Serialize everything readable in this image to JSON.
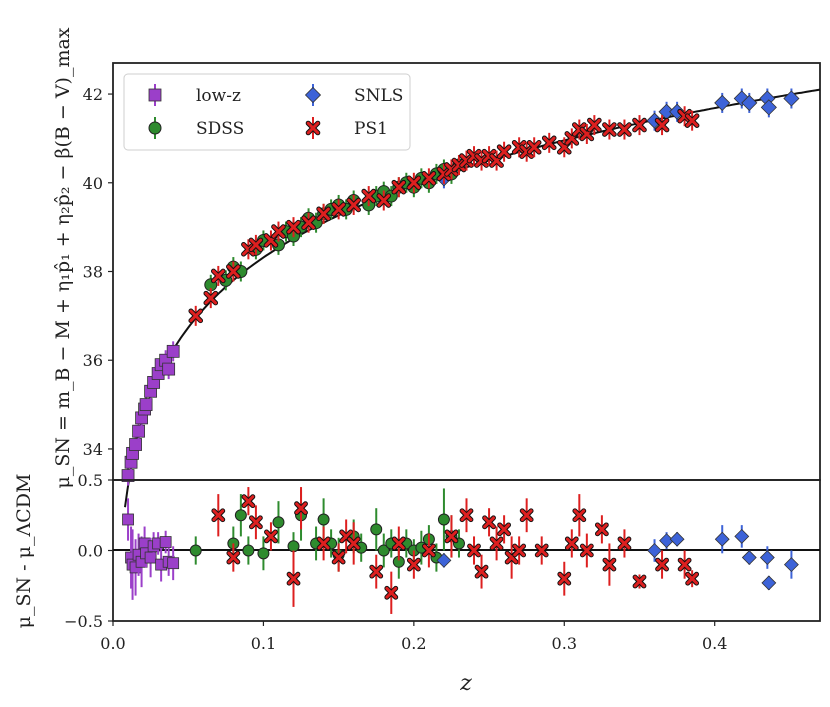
{
  "chart_data": {
    "type": "scatter",
    "xlabel": "z",
    "top_panel": {
      "ylabel": "μ_SN = m_B − M + η₁p̂₁ + η₂p̂₂ − β(B − V)_max",
      "ylim": [
        33.3,
        42.7
      ],
      "yticks": [
        "34",
        "36",
        "38",
        "40",
        "42"
      ],
      "ytick_values": [
        34,
        36,
        38,
        40,
        42
      ],
      "model_curve": "ΛCDM distance modulus",
      "series": [
        {
          "name": "low-z",
          "color": "#9b3fc9",
          "marker": "square",
          "x": [
            0.01,
            0.012,
            0.013,
            0.015,
            0.017,
            0.019,
            0.021,
            0.022,
            0.025,
            0.027,
            0.03,
            0.032,
            0.035,
            0.037,
            0.04
          ],
          "y": [
            33.4,
            33.7,
            33.9,
            34.1,
            34.4,
            34.7,
            34.9,
            35.0,
            35.3,
            35.5,
            35.7,
            35.9,
            36.0,
            35.8,
            36.2
          ]
        },
        {
          "name": "SDSS",
          "color": "#2e8b2e",
          "marker": "circle",
          "x": [
            0.065,
            0.075,
            0.08,
            0.085,
            0.095,
            0.1,
            0.11,
            0.115,
            0.12,
            0.125,
            0.13,
            0.135,
            0.14,
            0.145,
            0.15,
            0.155,
            0.16,
            0.17,
            0.175,
            0.18,
            0.185,
            0.19,
            0.195,
            0.2,
            0.205,
            0.21,
            0.215,
            0.22,
            0.225,
            0.23
          ],
          "y": [
            37.7,
            37.8,
            38.1,
            38.0,
            38.5,
            38.7,
            38.6,
            38.9,
            38.8,
            39.0,
            39.2,
            39.1,
            39.3,
            39.4,
            39.5,
            39.4,
            39.6,
            39.5,
            39.7,
            39.8,
            39.7,
            39.9,
            40.0,
            39.9,
            40.1,
            40.0,
            40.2,
            40.3,
            40.2,
            40.4
          ]
        },
        {
          "name": "SNLS",
          "color": "#3d63d8",
          "marker": "diamond",
          "x": [
            0.22,
            0.36,
            0.368,
            0.375,
            0.405,
            0.418,
            0.423,
            0.435,
            0.436,
            0.451
          ],
          "y": [
            40.1,
            41.4,
            41.6,
            41.6,
            41.8,
            41.9,
            41.8,
            41.9,
            41.7,
            41.9
          ]
        },
        {
          "name": "PS1",
          "color": "#dd1f1f",
          "marker": "x",
          "x": [
            0.055,
            0.065,
            0.07,
            0.08,
            0.09,
            0.095,
            0.105,
            0.11,
            0.12,
            0.13,
            0.14,
            0.15,
            0.16,
            0.17,
            0.18,
            0.19,
            0.2,
            0.21,
            0.22,
            0.225,
            0.23,
            0.235,
            0.24,
            0.245,
            0.25,
            0.255,
            0.26,
            0.27,
            0.275,
            0.28,
            0.29,
            0.3,
            0.305,
            0.31,
            0.315,
            0.32,
            0.33,
            0.34,
            0.35,
            0.365,
            0.38,
            0.385
          ],
          "y": [
            37.0,
            37.4,
            37.9,
            38.0,
            38.5,
            38.6,
            38.7,
            38.9,
            39.0,
            39.1,
            39.3,
            39.4,
            39.5,
            39.7,
            39.6,
            39.9,
            40.0,
            40.1,
            40.2,
            40.3,
            40.4,
            40.5,
            40.6,
            40.5,
            40.6,
            40.5,
            40.7,
            40.8,
            40.7,
            40.8,
            40.9,
            40.8,
            41.0,
            41.2,
            41.1,
            41.3,
            41.2,
            41.2,
            41.3,
            41.3,
            41.5,
            41.4
          ]
        }
      ]
    },
    "bottom_panel": {
      "ylabel": "μ_SN - μ_ΛCDM",
      "ylim": [
        -0.5,
        0.5
      ],
      "yticks": [
        "−0.5",
        "0.0",
        "0.5"
      ],
      "ytick_values": [
        -0.5,
        0.0,
        0.5
      ],
      "series": [
        {
          "name": "low-z",
          "color": "#9b3fc9",
          "marker": "square",
          "x": [
            0.01,
            0.012,
            0.013,
            0.015,
            0.017,
            0.019,
            0.021,
            0.022,
            0.025,
            0.027,
            0.03,
            0.032,
            0.035,
            0.037,
            0.04
          ],
          "y": [
            0.22,
            -0.05,
            -0.1,
            -0.12,
            -0.03,
            -0.08,
            0.05,
            -0.02,
            -0.05,
            0.03,
            0.05,
            -0.1,
            0.06,
            -0.08,
            -0.09
          ],
          "err": [
            0.15,
            0.22,
            0.25,
            0.2,
            0.15,
            0.18,
            0.12,
            0.1,
            0.14,
            0.1,
            0.08,
            0.12,
            0.08,
            0.1,
            0.12
          ]
        },
        {
          "name": "SDSS",
          "color": "#2e8b2e",
          "marker": "circle",
          "x": [
            0.055,
            0.08,
            0.085,
            0.09,
            0.1,
            0.11,
            0.12,
            0.125,
            0.135,
            0.14,
            0.145,
            0.15,
            0.16,
            0.165,
            0.175,
            0.18,
            0.185,
            0.19,
            0.195,
            0.2,
            0.205,
            0.21,
            0.215,
            0.22,
            0.225,
            0.23
          ],
          "y": [
            0.0,
            0.05,
            0.25,
            0.0,
            -0.02,
            0.2,
            0.03,
            0.25,
            0.05,
            0.22,
            0.05,
            -0.03,
            0.1,
            0.02,
            0.15,
            0.0,
            0.05,
            -0.08,
            0.05,
            0.0,
            0.02,
            0.08,
            -0.05,
            0.22,
            0.1,
            0.05
          ],
          "err": [
            0.1,
            0.12,
            0.15,
            0.1,
            0.12,
            0.15,
            0.1,
            0.18,
            0.12,
            0.15,
            0.1,
            0.12,
            0.12,
            0.1,
            0.15,
            0.12,
            0.1,
            0.12,
            0.1,
            0.08,
            0.12,
            0.1,
            0.1,
            0.22,
            0.15,
            0.1
          ]
        },
        {
          "name": "SNLS",
          "color": "#3d63d8",
          "marker": "diamond",
          "x": [
            0.22,
            0.36,
            0.368,
            0.375,
            0.405,
            0.418,
            0.423,
            0.435,
            0.436,
            0.451
          ],
          "y": [
            -0.07,
            0.0,
            0.07,
            0.08,
            0.08,
            0.1,
            -0.05,
            -0.05,
            -0.23,
            -0.1
          ],
          "err": [
            0.05,
            0.08,
            0.06,
            0.05,
            0.1,
            0.08,
            0.05,
            0.08,
            0.05,
            0.1
          ]
        },
        {
          "name": "PS1",
          "color": "#dd1f1f",
          "marker": "x",
          "x": [
            0.07,
            0.08,
            0.09,
            0.095,
            0.105,
            0.12,
            0.125,
            0.14,
            0.15,
            0.155,
            0.16,
            0.175,
            0.185,
            0.19,
            0.2,
            0.21,
            0.225,
            0.235,
            0.24,
            0.245,
            0.25,
            0.255,
            0.26,
            0.265,
            0.27,
            0.275,
            0.285,
            0.3,
            0.305,
            0.31,
            0.315,
            0.325,
            0.33,
            0.34,
            0.35,
            0.365,
            0.38,
            0.385
          ],
          "y": [
            0.25,
            -0.05,
            0.35,
            0.2,
            0.1,
            -0.2,
            0.3,
            0.05,
            -0.05,
            0.1,
            0.05,
            -0.15,
            -0.3,
            0.05,
            -0.1,
            0.0,
            0.1,
            0.25,
            0.0,
            -0.15,
            0.2,
            0.05,
            0.15,
            -0.05,
            0.0,
            0.25,
            0.0,
            -0.2,
            0.05,
            0.25,
            0.0,
            0.15,
            -0.1,
            0.05,
            -0.22,
            -0.1,
            -0.1,
            -0.2
          ],
          "err": [
            0.15,
            0.1,
            0.1,
            0.12,
            0.1,
            0.2,
            0.15,
            0.12,
            0.1,
            0.12,
            0.15,
            0.12,
            0.15,
            0.12,
            0.1,
            0.12,
            0.15,
            0.12,
            0.1,
            0.12,
            0.1,
            0.12,
            0.1,
            0.15,
            0.1,
            0.12,
            0.1,
            0.12,
            0.1,
            0.15,
            0.12,
            0.1,
            0.15,
            0.1,
            0.05,
            0.1,
            0.1,
            0.06
          ]
        }
      ]
    },
    "xlim": [
      0.0,
      0.47
    ],
    "xticks": [
      "0.0",
      "0.1",
      "0.2",
      "0.3",
      "0.4"
    ],
    "xtick_values": [
      0.0,
      0.1,
      0.2,
      0.3,
      0.4
    ],
    "legend": {
      "placement": "top-left",
      "entries": [
        {
          "label": "low-z",
          "color": "#9b3fc9",
          "marker": "square"
        },
        {
          "label": "SDSS",
          "color": "#2e8b2e",
          "marker": "circle"
        },
        {
          "label": "SNLS",
          "color": "#3d63d8",
          "marker": "diamond"
        },
        {
          "label": "PS1",
          "color": "#dd1f1f",
          "marker": "x"
        }
      ]
    }
  }
}
